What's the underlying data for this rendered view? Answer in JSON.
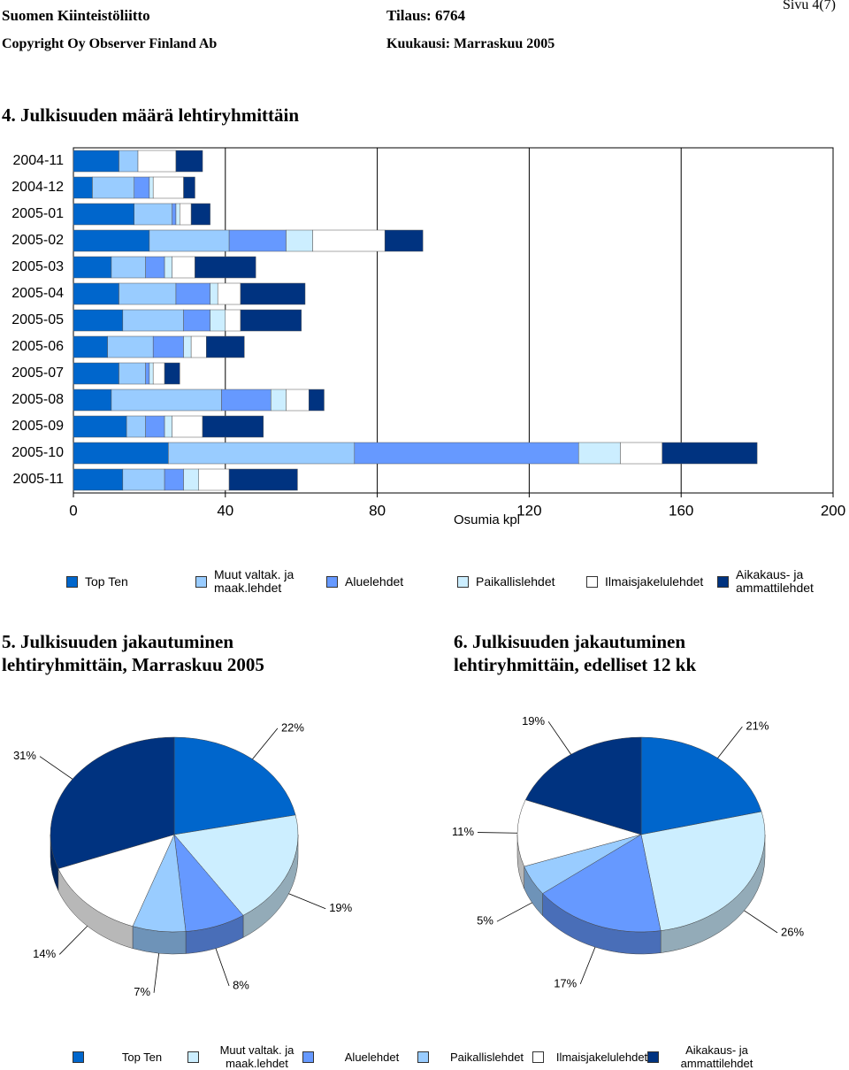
{
  "header": {
    "org": "Suomen Kiinteistöliitto",
    "order": "Tilaus: 6764",
    "page": "Sivu 4(7)",
    "copyright": "Copyright Oy Observer Finland Ab",
    "month": "Kuukausi: Marraskuu 2005"
  },
  "chart_data": [
    {
      "type": "bar",
      "orientation": "horizontal",
      "stacked": true,
      "title": "4. Julkisuuden määrä lehtiryhmittäin",
      "xlabel": "Osumia kpl",
      "categories": [
        "2004-11",
        "2004-12",
        "2005-01",
        "2005-02",
        "2005-03",
        "2005-04",
        "2005-05",
        "2005-06",
        "2005-07",
        "2005-08",
        "2005-09",
        "2005-10",
        "2005-11"
      ],
      "series": [
        {
          "name": "Top Ten",
          "color": "#0066cc",
          "values": [
            12,
            5,
            16,
            20,
            10,
            12,
            13,
            9,
            12,
            10,
            14,
            25,
            13
          ]
        },
        {
          "name": "Muut valtak. ja maak.lehdet",
          "color": "#99ccff",
          "values": [
            5,
            11,
            10,
            21,
            9,
            15,
            16,
            12,
            7,
            29,
            5,
            49,
            11
          ]
        },
        {
          "name": "Aluelehdet",
          "color": "#6699ff",
          "values": [
            0,
            4,
            1,
            15,
            5,
            9,
            7,
            8,
            1,
            13,
            5,
            59,
            5
          ]
        },
        {
          "name": "Paikallislehdet",
          "color": "#cceeff",
          "values": [
            0,
            1,
            1,
            7,
            2,
            2,
            4,
            2,
            1,
            4,
            2,
            11,
            4
          ]
        },
        {
          "name": "Ilmaisjakelulehdet",
          "color": "#ffffff",
          "values": [
            10,
            8,
            3,
            19,
            6,
            6,
            4,
            4,
            3,
            6,
            8,
            11,
            8
          ]
        },
        {
          "name": "Aikakaus- ja ammattilehdet",
          "color": "#003380",
          "values": [
            7,
            3,
            5,
            10,
            16,
            17,
            16,
            10,
            4,
            4,
            16,
            25,
            18
          ]
        }
      ],
      "xlim": [
        0,
        200
      ],
      "xticks": [
        0,
        40,
        80,
        120,
        160,
        200
      ],
      "grid": true
    },
    {
      "type": "pie",
      "title": "5. Julkisuuden jakautuminen lehtiryhmittäin, Marraskuu 2005",
      "categories": [
        "Top Ten",
        "Muut valtak. ja maak.lehdet",
        "Aluelehdet",
        "Paikallislehdet",
        "Ilmaisjakelulehdet",
        "Aikakaus- ja ammattilehdet"
      ],
      "colors": [
        "#0066cc",
        "#cceeff",
        "#6699ff",
        "#99ccff",
        "#ffffff",
        "#003380"
      ],
      "values": [
        22,
        19,
        8,
        7,
        14,
        31
      ],
      "value_labels": [
        "22%",
        "19%",
        "8%",
        "7%",
        "14%",
        "31%"
      ]
    },
    {
      "type": "pie",
      "title": "6. Julkisuuden jakautuminen lehtiryhmittäin, edelliset 12 kk",
      "colors": [
        "#0066cc",
        "#cceeff",
        "#6699ff",
        "#99ccff",
        "#ffffff",
        "#003380"
      ],
      "values": [
        21,
        26,
        17,
        5,
        11,
        19
      ],
      "value_labels": [
        "21%",
        "26%",
        "17%",
        "5%",
        "11%",
        "19%"
      ]
    }
  ]
}
